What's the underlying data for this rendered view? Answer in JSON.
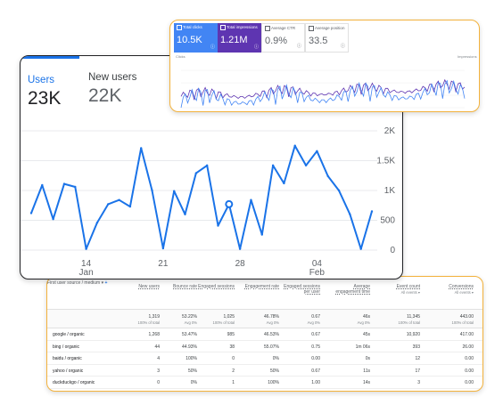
{
  "users_chart": {
    "tabs": [
      {
        "label": "Users",
        "value": "23K"
      },
      {
        "label": "New users",
        "value": "22K"
      }
    ],
    "accent": "#1a73e8",
    "y_ticks": [
      "2K",
      "1.5K",
      "1K",
      "500",
      "0"
    ],
    "x_ticks": [
      {
        "day": "14",
        "month": "Jan"
      },
      {
        "day": "21",
        "month": ""
      },
      {
        "day": "28",
        "month": ""
      },
      {
        "day": "04",
        "month": "Feb"
      }
    ]
  },
  "chart_data": [
    {
      "type": "line",
      "x_start": "Jan 9",
      "ylim": [
        0,
        2000
      ],
      "series": [
        {
          "values": [
            620,
            1090,
            520,
            1110,
            1060,
            20,
            460,
            770,
            840,
            730,
            1710,
            1000,
            30,
            990,
            600,
            1290,
            1420,
            410,
            770,
            20,
            840,
            260,
            1420,
            1120,
            1750,
            1420,
            1660,
            1240,
            1000,
            600,
            20,
            650
          ]
        }
      ],
      "highlight_index": 18,
      "yticks": [
        "2K",
        "1.5K",
        "1K",
        "500",
        "0"
      ],
      "xticks": [
        "14 Jan",
        "21",
        "28",
        "04 Feb"
      ]
    }
  ],
  "search_console": {
    "metrics": [
      {
        "label": "Total clicks",
        "value": "10.5K",
        "color": "#4285f4"
      },
      {
        "label": "Total impressions",
        "value": "1.21M",
        "color": "#5e35b1"
      },
      {
        "label": "Average CTR",
        "value": "0.9%"
      },
      {
        "label": "Average position",
        "value": "33.5"
      }
    ],
    "left_axis_title": "Clicks",
    "right_axis_title": "Impressions"
  },
  "table": {
    "dimension_header": "First user source / medium",
    "add_symbol": "+",
    "sort_symbol": "↓",
    "columns": [
      {
        "label": "New users",
        "total": "1,319",
        "total_sub": "100% of total"
      },
      {
        "label": "Bounce rate",
        "total": "53.22%",
        "total_sub": "Avg 0%"
      },
      {
        "label": "Engaged sessions",
        "total": "1,025",
        "total_sub": "100% of total"
      },
      {
        "label": "Engagement rate",
        "total": "46.78%",
        "total_sub": "Avg 0%"
      },
      {
        "label": "Engaged sessions per user",
        "total": "0.67",
        "total_sub": "Avg 0%"
      },
      {
        "label": "Average engagement time",
        "total": "46s",
        "total_sub": "Avg 0%"
      },
      {
        "label": "Event count",
        "sub_label": "All events ▾",
        "total": "11,345",
        "total_sub": "100% of total"
      },
      {
        "label": "Conversions",
        "sub_label": "All events ▾",
        "total": "443.00",
        "total_sub": "100% of total"
      }
    ],
    "rows": [
      {
        "num": "1",
        "name": "google / organic",
        "values": [
          "1,268",
          "53.47%",
          "985",
          "46.53%",
          "0.67",
          "45s",
          "10,920",
          "417.00"
        ]
      },
      {
        "num": "2",
        "name": "bing / organic",
        "values": [
          "44",
          "44.93%",
          "38",
          "55.07%",
          "0.75",
          "1m 06s",
          "393",
          "26.00"
        ]
      },
      {
        "num": "3",
        "name": "baidu / organic",
        "values": [
          "4",
          "100%",
          "0",
          "0%",
          "0.00",
          "0s",
          "12",
          "0.00"
        ]
      },
      {
        "num": "4",
        "name": "yahoo / organic",
        "values": [
          "3",
          "50%",
          "2",
          "50%",
          "0.67",
          "11s",
          "17",
          "0.00"
        ]
      },
      {
        "num": "5",
        "name": "duckduckgo / organic",
        "values": [
          "0",
          "0%",
          "1",
          "100%",
          "1.00",
          "14s",
          "3",
          "0.00"
        ]
      }
    ]
  }
}
